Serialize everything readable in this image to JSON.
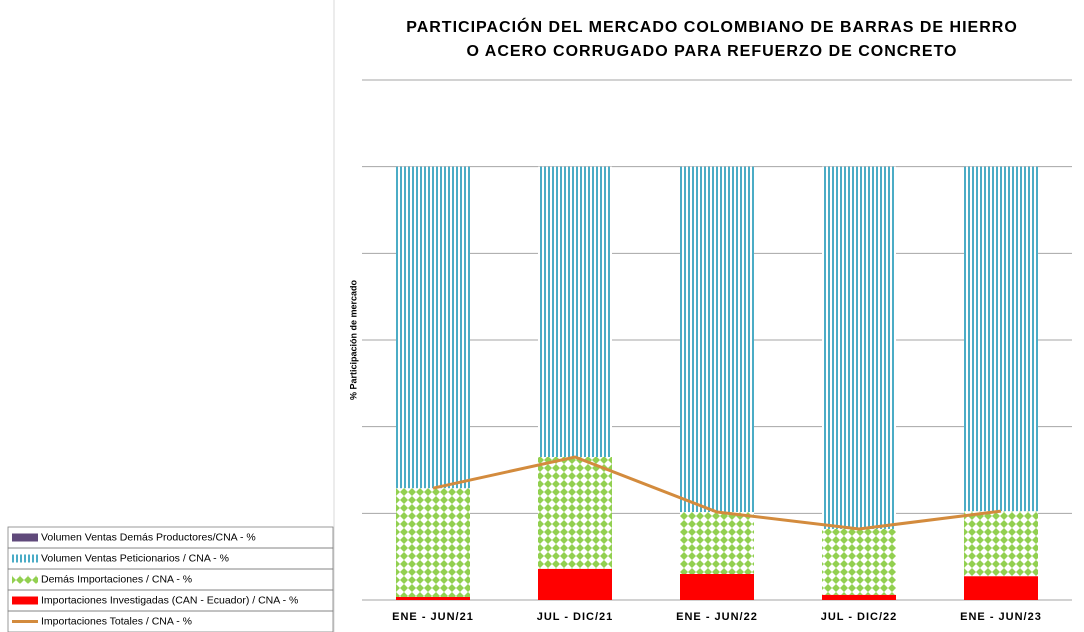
{
  "chart_data": {
    "type": "stacked_bar_line",
    "title": [
      "PARTICIPACIÓN DEL MERCADO COLOMBIANO DE BARRAS DE HIERRO",
      "O ACERO CORRUGADO PARA REFUERZO DE CONCRETO"
    ],
    "y_label": "% Participación  de  mercado",
    "categories": [
      "ENE - JUN/21",
      "JUL - DIC/21",
      "ENE - JUN/22",
      "JUL - DIC/22",
      "ENE - JUN/23"
    ],
    "ylim": [
      0,
      120
    ],
    "yticks": [
      0,
      20,
      40,
      60,
      80,
      100,
      120
    ],
    "grid": true,
    "series": [
      {
        "name": "Importaciones Investigadas (CAN - Ecuador) / CNA - %",
        "color": "#ff0000",
        "values": [
          0.7,
          7.2,
          6.0,
          1.2,
          5.5
        ]
      },
      {
        "name": "Demás Importaciones / CNA - %",
        "color": "#92d050",
        "values": [
          25.1,
          25.8,
          14.3,
          15.2,
          15.0
        ]
      },
      {
        "name": "Volumen Ventas Peticionarios / CNA - %",
        "color": "#4bacc6",
        "values": [
          74.2,
          67.0,
          79.7,
          83.6,
          79.5
        ]
      },
      {
        "name": "Volumen Ventas Demás Productores/CNA - %",
        "color": "#604a7b",
        "values": [
          0,
          0,
          0,
          0,
          0
        ]
      },
      {
        "name": "Importaciones Totales / CNA - %",
        "color": "#d38b3d",
        "type": "line",
        "values": [
          25.8,
          33.0,
          20.3,
          16.4,
          20.5
        ]
      }
    ]
  }
}
